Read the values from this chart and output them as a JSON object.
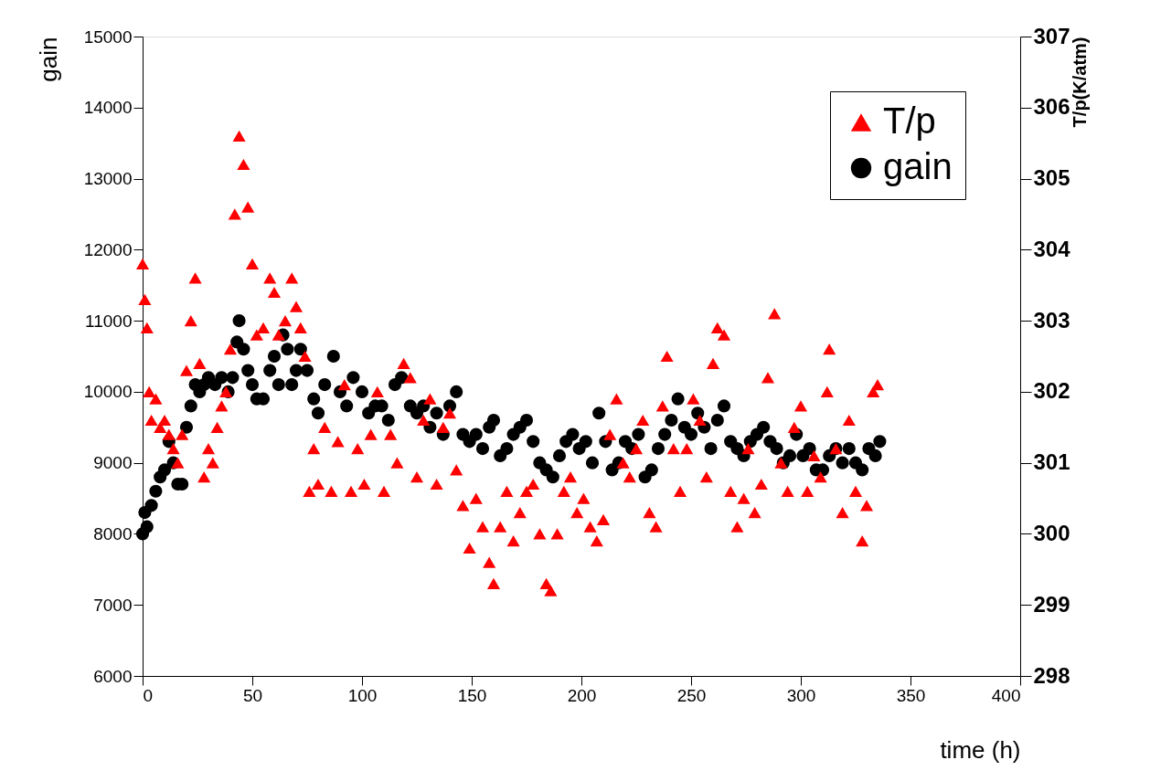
{
  "chart_data": {
    "type": "scatter",
    "xlabel": "time (h)",
    "ylabel": "gain",
    "y2label": "T/p(K/atm)",
    "xlim": [
      0,
      400
    ],
    "xticks": [
      0,
      50,
      100,
      150,
      200,
      250,
      300,
      350,
      400
    ],
    "ylim": [
      6000,
      15000
    ],
    "yticks": [
      6000,
      7000,
      8000,
      9000,
      10000,
      11000,
      12000,
      13000,
      14000,
      15000
    ],
    "y2lim": [
      298,
      307
    ],
    "y2ticks": [
      298,
      299,
      300,
      301,
      302,
      303,
      304,
      305,
      306,
      307
    ],
    "grid": false,
    "legend": "top right",
    "series": [
      {
        "name": "T/p",
        "color": "#ff0000",
        "axis": "y2",
        "marker": "triangle",
        "x": [
          0,
          1,
          2,
          3,
          4,
          6,
          8,
          10,
          12,
          14,
          16,
          18,
          20,
          22,
          24,
          26,
          28,
          30,
          32,
          34,
          36,
          38,
          40,
          42,
          44,
          46,
          48,
          50,
          52,
          55,
          58,
          60,
          62,
          65,
          68,
          70,
          72,
          74,
          76,
          78,
          80,
          83,
          86,
          89,
          92,
          95,
          98,
          101,
          104,
          107,
          110,
          113,
          116,
          119,
          122,
          125,
          128,
          131,
          134,
          137,
          140,
          143,
          146,
          149,
          152,
          155,
          158,
          160,
          163,
          166,
          169,
          172,
          175,
          178,
          181,
          184,
          186,
          189,
          192,
          195,
          198,
          201,
          204,
          207,
          210,
          213,
          216,
          219,
          222,
          225,
          228,
          231,
          234,
          237,
          239,
          242,
          245,
          248,
          251,
          254,
          257,
          260,
          262,
          265,
          268,
          271,
          274,
          276,
          279,
          282,
          285,
          288,
          291,
          294,
          297,
          300,
          303,
          306,
          309,
          312,
          313,
          316,
          319,
          322,
          325,
          328,
          330,
          333,
          335
        ],
        "values": [
          303.8,
          303.3,
          302.9,
          302.0,
          301.6,
          301.9,
          301.5,
          301.6,
          301.4,
          301.2,
          301.0,
          301.4,
          302.3,
          303.0,
          303.6,
          302.4,
          300.8,
          301.2,
          301.0,
          301.5,
          301.8,
          302.0,
          302.6,
          304.5,
          305.6,
          305.2,
          304.6,
          303.8,
          302.8,
          302.9,
          303.6,
          303.4,
          302.8,
          303.0,
          303.6,
          303.2,
          302.9,
          302.5,
          300.6,
          301.2,
          300.7,
          301.5,
          300.6,
          301.3,
          302.1,
          300.6,
          301.2,
          300.7,
          301.4,
          302.0,
          300.6,
          301.4,
          301.0,
          302.4,
          302.2,
          300.8,
          301.6,
          301.9,
          300.7,
          301.5,
          301.7,
          300.9,
          300.4,
          299.8,
          300.5,
          300.1,
          299.6,
          299.3,
          300.1,
          300.6,
          299.9,
          300.3,
          300.6,
          300.7,
          300.0,
          299.3,
          299.2,
          300.0,
          300.6,
          300.8,
          300.3,
          300.5,
          300.1,
          299.9,
          300.2,
          301.4,
          301.9,
          301.0,
          300.8,
          301.2,
          301.6,
          300.3,
          300.1,
          301.8,
          302.5,
          301.2,
          300.6,
          301.2,
          301.9,
          301.6,
          300.8,
          302.4,
          302.9,
          302.8,
          300.6,
          300.1,
          300.5,
          301.2,
          300.3,
          300.7,
          302.2,
          303.1,
          301.0,
          300.6,
          301.5,
          301.8,
          300.6,
          301.1,
          300.8,
          302.0,
          302.6,
          301.2,
          300.3,
          301.6,
          300.6,
          299.9,
          300.4,
          302.0,
          302.1
        ]
      },
      {
        "name": "gain",
        "color": "#000000",
        "marker": "circle",
        "x": [
          0,
          1,
          2,
          4,
          6,
          8,
          10,
          12,
          14,
          16,
          18,
          20,
          22,
          24,
          26,
          28,
          30,
          33,
          36,
          39,
          41,
          43,
          44,
          46,
          48,
          50,
          52,
          55,
          58,
          60,
          62,
          64,
          66,
          68,
          70,
          72,
          75,
          78,
          80,
          83,
          87,
          90,
          93,
          96,
          100,
          103,
          106,
          109,
          112,
          115,
          118,
          122,
          125,
          128,
          131,
          134,
          137,
          140,
          143,
          146,
          149,
          152,
          155,
          158,
          160,
          163,
          166,
          169,
          172,
          175,
          178,
          181,
          184,
          187,
          190,
          193,
          196,
          199,
          202,
          205,
          208,
          211,
          214,
          217,
          220,
          223,
          226,
          229,
          232,
          235,
          238,
          241,
          244,
          247,
          250,
          253,
          256,
          259,
          262,
          265,
          268,
          271,
          274,
          277,
          280,
          283,
          286,
          289,
          292,
          295,
          298,
          301,
          304,
          307,
          310,
          313,
          316,
          319,
          322,
          325,
          328,
          331,
          334,
          336
        ],
        "values": [
          8000,
          8300,
          8100,
          8400,
          8600,
          8800,
          8900,
          9300,
          9000,
          8700,
          8700,
          9500,
          9800,
          10100,
          10000,
          10100,
          10200,
          10100,
          10200,
          10000,
          10200,
          10700,
          11000,
          10600,
          10300,
          10100,
          9900,
          9900,
          10300,
          10500,
          10100,
          10800,
          10600,
          10100,
          10300,
          10600,
          10300,
          9900,
          9700,
          10100,
          10500,
          10000,
          9800,
          10200,
          10000,
          9700,
          9800,
          9800,
          9600,
          10100,
          10200,
          9800,
          9700,
          9800,
          9500,
          9700,
          9400,
          9800,
          10000,
          9400,
          9300,
          9400,
          9200,
          9500,
          9600,
          9100,
          9200,
          9400,
          9500,
          9600,
          9300,
          9000,
          8900,
          8800,
          9100,
          9300,
          9400,
          9200,
          9300,
          9000,
          9700,
          9300,
          8900,
          9000,
          9300,
          9200,
          9400,
          8800,
          8900,
          9200,
          9400,
          9600,
          9900,
          9500,
          9400,
          9700,
          9500,
          9200,
          9600,
          9800,
          9300,
          9200,
          9100,
          9300,
          9400,
          9500,
          9300,
          9200,
          9000,
          9100,
          9400,
          9100,
          9200,
          8900,
          8900,
          9100,
          9200,
          9000,
          9200,
          9000,
          8900,
          9200,
          9100,
          9300
        ]
      }
    ]
  }
}
